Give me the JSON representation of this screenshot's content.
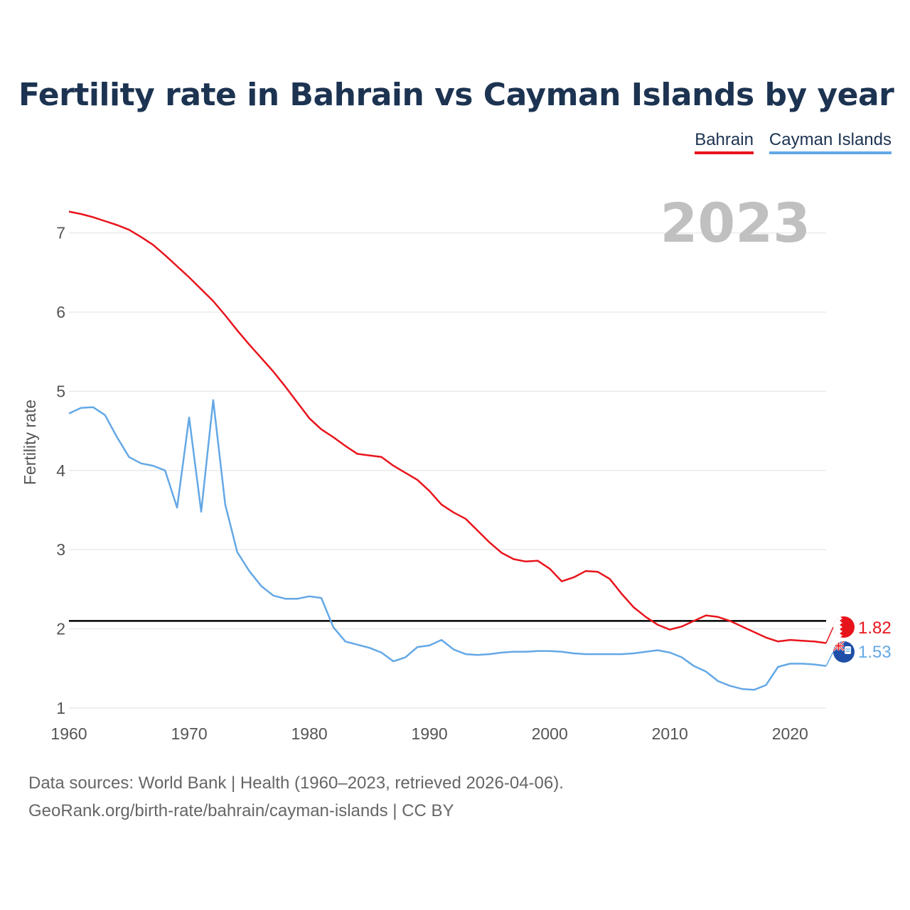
{
  "chart_data": {
    "type": "line",
    "title": "Fertility rate in Bahrain vs Cayman Islands by year",
    "ylabel": "Fertility rate",
    "xlabel": "",
    "year_label": "2023",
    "xlim": [
      1960,
      2023
    ],
    "ylim": [
      0.9,
      7.5
    ],
    "x_ticks": [
      1960,
      1970,
      1980,
      1990,
      2000,
      2010,
      2020
    ],
    "y_ticks": [
      1,
      2,
      3,
      4,
      5,
      6,
      7
    ],
    "reference_line": 2.1,
    "x": [
      1960,
      1961,
      1962,
      1963,
      1964,
      1965,
      1966,
      1967,
      1968,
      1969,
      1970,
      1971,
      1972,
      1973,
      1974,
      1975,
      1976,
      1977,
      1978,
      1979,
      1980,
      1981,
      1982,
      1983,
      1984,
      1985,
      1986,
      1987,
      1988,
      1989,
      1990,
      1991,
      1992,
      1993,
      1994,
      1995,
      1996,
      1997,
      1998,
      1999,
      2000,
      2001,
      2002,
      2003,
      2004,
      2005,
      2006,
      2007,
      2008,
      2009,
      2010,
      2011,
      2012,
      2013,
      2014,
      2015,
      2016,
      2017,
      2018,
      2019,
      2020,
      2021,
      2022,
      2023
    ],
    "series": [
      {
        "name": "Bahrain",
        "color": "#e8141c",
        "end_label": "1.82",
        "values": [
          7.27,
          7.24,
          7.2,
          7.15,
          7.1,
          7.04,
          6.95,
          6.85,
          6.72,
          6.58,
          6.44,
          6.29,
          6.14,
          5.96,
          5.77,
          5.59,
          5.42,
          5.25,
          5.06,
          4.86,
          4.66,
          4.52,
          4.42,
          4.31,
          4.21,
          4.19,
          4.17,
          4.06,
          3.97,
          3.88,
          3.74,
          3.57,
          3.47,
          3.39,
          3.24,
          3.09,
          2.96,
          2.88,
          2.85,
          2.86,
          2.76,
          2.6,
          2.65,
          2.73,
          2.72,
          2.63,
          2.44,
          2.27,
          2.15,
          2.05,
          1.99,
          2.03,
          2.1,
          2.17,
          2.15,
          2.1,
          2.03,
          1.96,
          1.89,
          1.84,
          1.86,
          1.85,
          1.84,
          1.82
        ]
      },
      {
        "name": "Cayman Islands",
        "color": "#64a8e6",
        "end_label": "1.53",
        "values": [
          4.72,
          4.79,
          4.8,
          4.7,
          4.42,
          4.17,
          4.09,
          4.06,
          4.0,
          3.53,
          4.67,
          3.48,
          4.89,
          3.57,
          2.97,
          2.73,
          2.54,
          2.42,
          2.38,
          2.38,
          2.41,
          2.39,
          2.02,
          1.84,
          1.8,
          1.76,
          1.7,
          1.59,
          1.64,
          1.77,
          1.79,
          1.86,
          1.74,
          1.68,
          1.67,
          1.68,
          1.7,
          1.71,
          1.71,
          1.72,
          1.72,
          1.71,
          1.69,
          1.68,
          1.68,
          1.68,
          1.68,
          1.69,
          1.71,
          1.73,
          1.7,
          1.64,
          1.53,
          1.46,
          1.34,
          1.28,
          1.24,
          1.23,
          1.29,
          1.52,
          1.56,
          1.56,
          1.55,
          1.53
        ]
      }
    ]
  },
  "legend": {
    "bahrain": "Bahrain",
    "cayman": "Cayman Islands"
  },
  "footer": {
    "source": "Data sources: World Bank | Health (1960–2023, retrieved 2026-04-06).",
    "credit": "GeoRank.org/birth-rate/bahrain/cayman-islands | CC BY"
  }
}
